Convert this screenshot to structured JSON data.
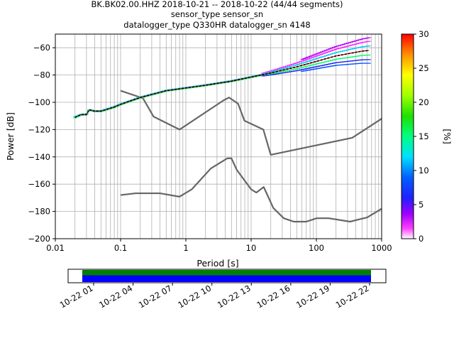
{
  "header": {
    "line1": "BK.BK02.00.HHZ   2018-10-21 -- 2018-10-22  (44/44 segments)",
    "line2": "sensor_type  sensor_sn",
    "line3": "datalogger_type Q330HR datalogger_sn 4148"
  },
  "chart_data": [
    {
      "type": "heatmap",
      "xlabel": "Period [s]",
      "ylabel": "Power [dB]",
      "x_scale": "log",
      "xlim": [
        0.01,
        1000
      ],
      "ylim": [
        -200,
        -50
      ],
      "x_ticks": [
        0.01,
        0.1,
        1,
        10,
        100,
        1000
      ],
      "x_tick_labels": [
        "0.01",
        "0.1",
        "1",
        "10",
        "100",
        "1000"
      ],
      "y_ticks": [
        -200,
        -180,
        -160,
        -140,
        -120,
        -100,
        -80,
        -60
      ],
      "y_tick_labels": [
        "−200",
        "−180",
        "−160",
        "−140",
        "−120",
        "−100",
        "−80",
        "−60"
      ],
      "grid": true,
      "colorbar": {
        "label": "[%]",
        "range": [
          0,
          30
        ],
        "ticks": [
          0,
          5,
          10,
          15,
          20,
          25,
          30
        ],
        "tick_labels": [
          "0",
          "5",
          "10",
          "15",
          "20",
          "25",
          "30"
        ]
      },
      "series": [
        {
          "style": "noise-model",
          "color": "#666666",
          "points": [
            [
              0.1,
              -91.5
            ],
            [
              0.22,
              -97.0
            ],
            [
              0.32,
              -110.5
            ],
            [
              0.8,
              -120.0
            ],
            [
              3.8,
              -98.5
            ],
            [
              4.6,
              -96.5
            ],
            [
              6.3,
              -101.0
            ],
            [
              7.9,
              -113.5
            ],
            [
              15.4,
              -120.0
            ],
            [
              20.0,
              -138.5
            ],
            [
              354.8,
              -126.0
            ],
            [
              1000,
              -112.0
            ]
          ]
        },
        {
          "style": "noise-model",
          "color": "#666666",
          "points": [
            [
              0.1,
              -168.0
            ],
            [
              0.17,
              -166.7
            ],
            [
              0.4,
              -166.7
            ],
            [
              0.8,
              -169.2
            ],
            [
              1.24,
              -163.7
            ],
            [
              2.4,
              -148.6
            ],
            [
              4.3,
              -141.1
            ],
            [
              5.0,
              -141.1
            ],
            [
              6.0,
              -149.4
            ],
            [
              10.0,
              -163.8
            ],
            [
              12.0,
              -166.2
            ],
            [
              15.6,
              -162.1
            ],
            [
              21.9,
              -177.5
            ],
            [
              31.6,
              -185.0
            ],
            [
              45.0,
              -187.5
            ],
            [
              70.0,
              -187.5
            ],
            [
              101.0,
              -185.0
            ],
            [
              154.0,
              -185.0
            ],
            [
              328.0,
              -187.5
            ],
            [
              600.0,
              -184.4
            ],
            [
              1000,
              -178.0
            ]
          ]
        },
        {
          "style": "psd-median",
          "color": "#000000",
          "points": [
            [
              0.02,
              -111.0
            ],
            [
              0.025,
              -109.0
            ],
            [
              0.03,
              -109.0
            ],
            [
              0.033,
              -105.5
            ],
            [
              0.04,
              -106.5
            ],
            [
              0.05,
              -106.5
            ],
            [
              0.08,
              -103.5
            ],
            [
              0.1,
              -101.5
            ],
            [
              0.2,
              -96.5
            ],
            [
              0.5,
              -91.5
            ],
            [
              1.0,
              -89.5
            ],
            [
              2.0,
              -87.5
            ],
            [
              5.0,
              -84.5
            ],
            [
              10.0,
              -81.5
            ],
            [
              20.0,
              -78.5
            ],
            [
              50.0,
              -74.0
            ],
            [
              100.0,
              -70.0
            ],
            [
              200.0,
              -66.0
            ],
            [
              500.0,
              -62.5
            ],
            [
              640.0,
              -62.0
            ]
          ]
        }
      ]
    },
    {
      "type": "timeline",
      "x_tick_labels": [
        "10-22 01",
        "10-22 04",
        "10-22 07",
        "10-22 10",
        "10-22 13",
        "10-22 16",
        "10-22 19",
        "10-22 22"
      ],
      "bars": [
        {
          "color": "#008000"
        },
        {
          "color": "#0000ff"
        }
      ]
    }
  ]
}
